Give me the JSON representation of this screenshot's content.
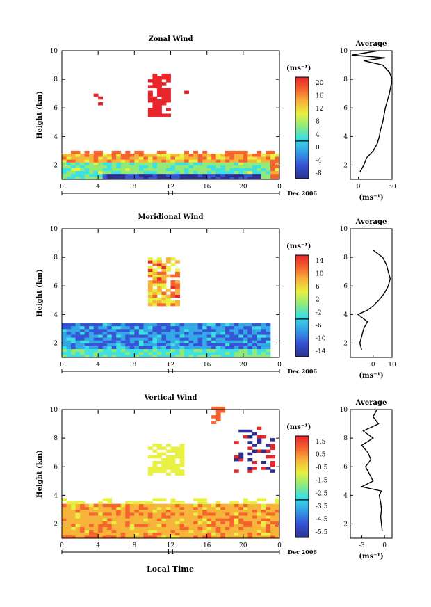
{
  "x_axis": {
    "label": "Local Time",
    "ticks": [
      "0",
      "4",
      "8",
      "12",
      "16",
      "20",
      "0"
    ],
    "day_label": "11",
    "month_label": "Dec 2006"
  },
  "y_axis": {
    "label": "Height (km)",
    "ticks": [
      "2",
      "4",
      "6",
      "8",
      "10"
    ]
  },
  "colorbar_unit": "(ms⁻¹)",
  "profile_unit": "(ms⁻¹)",
  "profile_title": "Average",
  "chart_data": [
    {
      "type": "heatmap",
      "title": "Zonal Wind",
      "xlim": [
        0,
        24
      ],
      "ylim": [
        1,
        10
      ],
      "colorbar_ticks": [
        "20",
        "16",
        "12",
        "8",
        "4",
        "0",
        "-4",
        "-8"
      ],
      "colorbar_range": [
        -10,
        22
      ],
      "profile": {
        "type": "line",
        "title": "Average",
        "xlim": [
          -12,
          50
        ],
        "xticks": [
          "0",
          "50"
        ],
        "heights": [
          1.5,
          2.0,
          2.5,
          3.0,
          3.5,
          4.0,
          4.5,
          5.0,
          5.5,
          6.0,
          6.5,
          7.0,
          7.5,
          8.0,
          8.5,
          9.0,
          9.3,
          9.5,
          9.7,
          10.0
        ],
        "values": [
          2,
          8,
          12,
          22,
          28,
          31,
          33,
          36,
          38,
          40,
          43,
          46,
          48,
          50,
          46,
          36,
          8,
          40,
          -10,
          30
        ]
      }
    },
    {
      "type": "heatmap",
      "title": "Meridional Wind",
      "xlim": [
        0,
        24
      ],
      "ylim": [
        1,
        10
      ],
      "colorbar_ticks": [
        "14",
        "10",
        "6",
        "2",
        "-2",
        "-6",
        "-10",
        "-14"
      ],
      "colorbar_range": [
        -16,
        16
      ],
      "profile": {
        "type": "line",
        "title": "Average",
        "xlim": [
          -12,
          10
        ],
        "xticks": [
          "0",
          "10"
        ],
        "heights": [
          1.5,
          2.0,
          2.5,
          3.0,
          3.5,
          4.0,
          4.3,
          4.6,
          5.0,
          5.5,
          6.0,
          6.5,
          7.0,
          7.5,
          8.0,
          8.5
        ],
        "values": [
          -6,
          -7,
          -6,
          -5,
          -3,
          -8,
          -3,
          0,
          3,
          6,
          8,
          9,
          8,
          7,
          5,
          0
        ]
      }
    },
    {
      "type": "heatmap",
      "title": "Vertical Wind",
      "xlim": [
        0,
        24
      ],
      "ylim": [
        1,
        10
      ],
      "colorbar_ticks": [
        "1.5",
        "0.5",
        "-0.5",
        "-1.5",
        "-2.5",
        "-3.5",
        "-4.5",
        "-5.5"
      ],
      "colorbar_range": [
        -6,
        2
      ],
      "profile": {
        "type": "line",
        "title": "Average",
        "xlim": [
          -4.5,
          1
        ],
        "xticks": [
          "-3",
          "0"
        ],
        "heights": [
          1.5,
          2.0,
          2.5,
          3.0,
          3.5,
          4.0,
          4.3,
          4.6,
          5.0,
          5.5,
          6.0,
          6.5,
          7.0,
          7.5,
          8.0,
          8.5,
          9.0,
          9.5,
          10.0
        ],
        "values": [
          -0.3,
          -0.4,
          -0.5,
          -0.4,
          -0.5,
          -0.7,
          -0.4,
          -3.0,
          -1.5,
          -2.0,
          -2.5,
          -1.8,
          -2.2,
          -3.0,
          -1.5,
          -2.8,
          -0.8,
          -1.5,
          -1.0
        ]
      }
    }
  ]
}
